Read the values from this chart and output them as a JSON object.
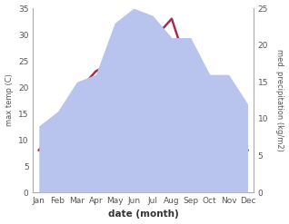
{
  "months": [
    "Jan",
    "Feb",
    "Mar",
    "Apr",
    "May",
    "Jun",
    "Jul",
    "Aug",
    "Sep",
    "Oct",
    "Nov",
    "Dec"
  ],
  "temperature": [
    8,
    13,
    19,
    23,
    25,
    30,
    29,
    33,
    22,
    13,
    9,
    8
  ],
  "precipitation": [
    9,
    11,
    15,
    16,
    23,
    25,
    24,
    21,
    21,
    16,
    16,
    12
  ],
  "temp_color": "#a03050",
  "precip_color_fill": "#b8c4ee",
  "temp_ylim": [
    0,
    35
  ],
  "precip_ylim": [
    0,
    25
  ],
  "temp_yticks": [
    0,
    5,
    10,
    15,
    20,
    25,
    30,
    35
  ],
  "precip_yticks": [
    0,
    5,
    10,
    15,
    20,
    25
  ],
  "xlabel": "date (month)",
  "ylabel_left": "max temp (C)",
  "ylabel_right": "med. precipitation (kg/m2)",
  "background_color": "#ffffff"
}
